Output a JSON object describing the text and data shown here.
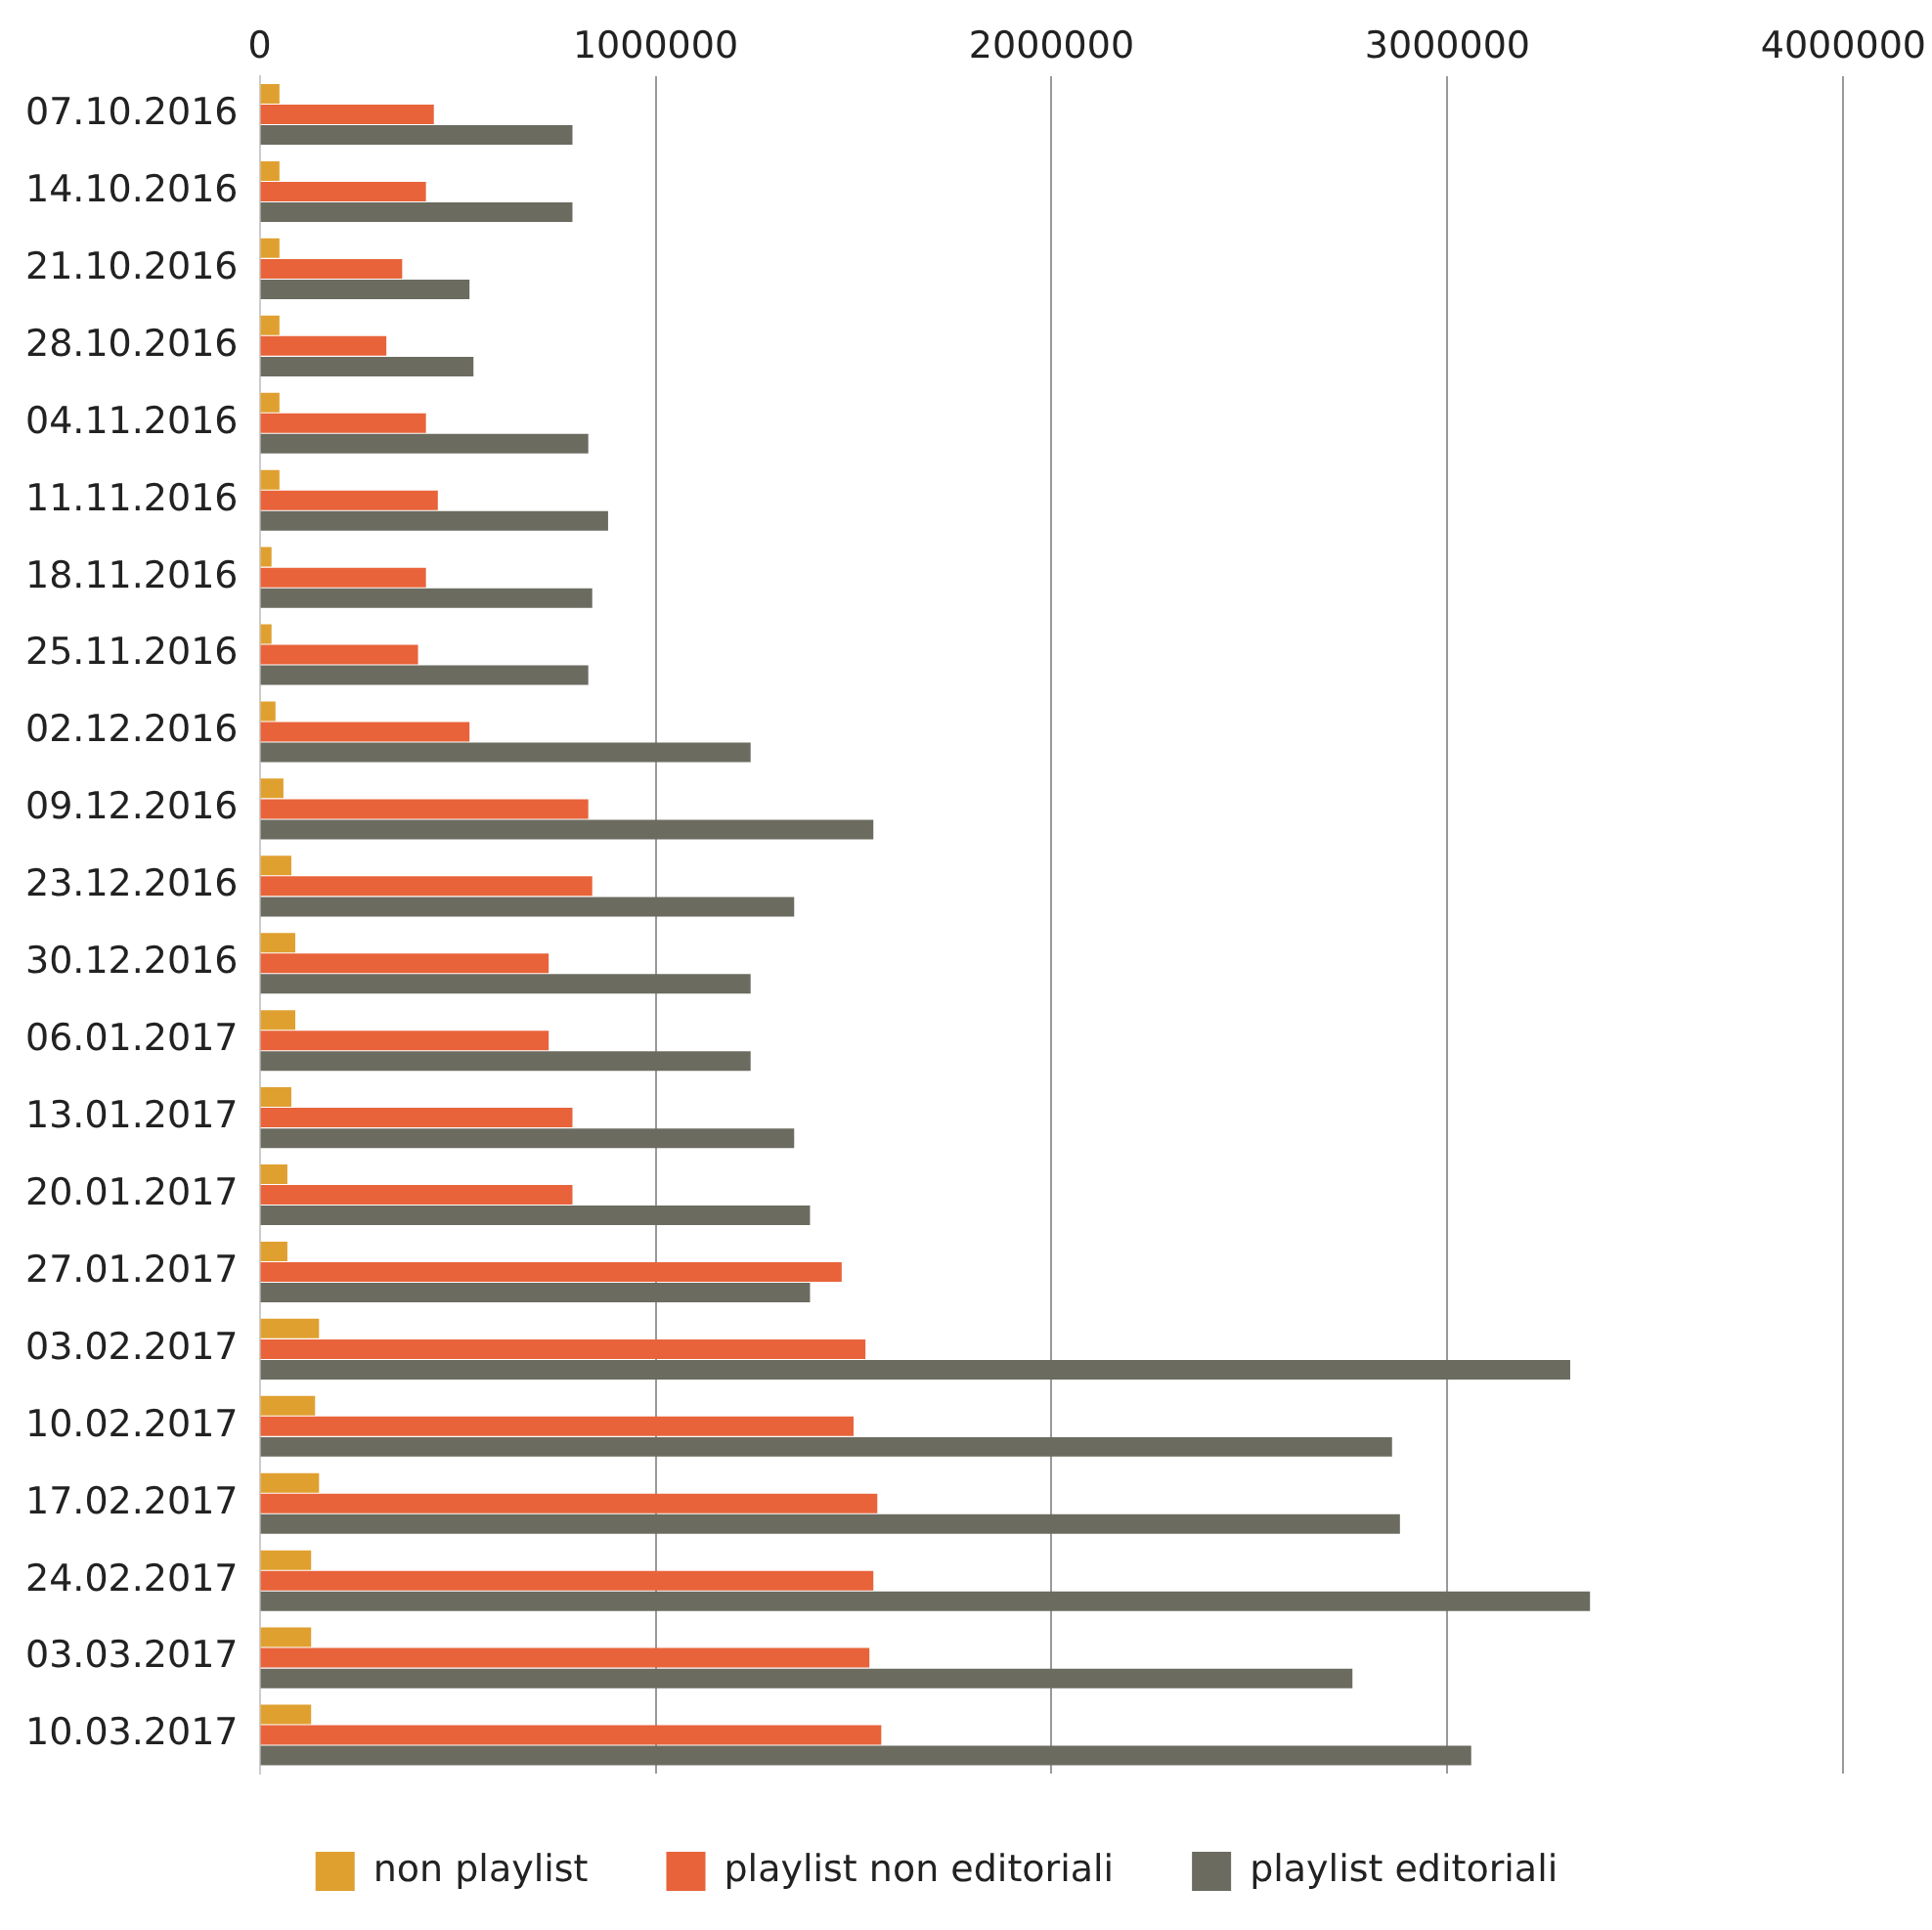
{
  "chart_data": {
    "type": "bar",
    "orientation": "horizontal",
    "categories": [
      "07.10.2016",
      "14.10.2016",
      "21.10.2016",
      "28.10.2016",
      "04.11.2016",
      "11.11.2016",
      "18.11.2016",
      "25.11.2016",
      "02.12.2016",
      "09.12.2016",
      "23.12.2016",
      "30.12.2016",
      "06.01.2017",
      "13.01.2017",
      "20.01.2017",
      "27.01.2017",
      "03.02.2017",
      "10.02.2017",
      "17.02.2017",
      "24.02.2017",
      "03.03.2017",
      "10.03.2017"
    ],
    "series": [
      {
        "name": "non playlist",
        "color": "#e0a030",
        "values": [
          50000,
          50000,
          50000,
          50000,
          50000,
          50000,
          30000,
          30000,
          40000,
          60000,
          80000,
          90000,
          90000,
          80000,
          70000,
          70000,
          150000,
          140000,
          150000,
          130000,
          130000,
          130000
        ]
      },
      {
        "name": "playlist non editoriali",
        "color": "#e8633a",
        "values": [
          440000,
          420000,
          360000,
          320000,
          420000,
          450000,
          420000,
          400000,
          530000,
          830000,
          840000,
          730000,
          730000,
          790000,
          790000,
          1470000,
          1530000,
          1500000,
          1560000,
          1550000,
          1540000,
          1570000
        ]
      },
      {
        "name": "playlist editoriali",
        "color": "#6b6b60",
        "values": [
          790000,
          790000,
          530000,
          540000,
          830000,
          880000,
          840000,
          830000,
          1240000,
          1550000,
          1350000,
          1240000,
          1240000,
          1350000,
          1390000,
          1390000,
          3310000,
          2860000,
          2880000,
          3360000,
          2760000,
          3060000
        ]
      }
    ],
    "xlim": [
      0,
      4000000
    ],
    "xticks": [
      0,
      1000000,
      2000000,
      3000000,
      4000000
    ],
    "grid": "x",
    "legend": "bottom"
  }
}
